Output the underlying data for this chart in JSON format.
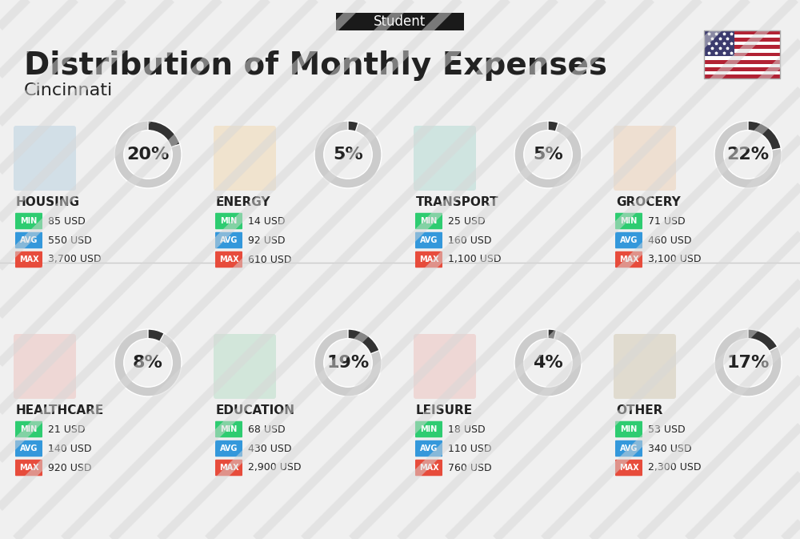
{
  "title": "Distribution of Monthly Expenses",
  "subtitle": "Cincinnati",
  "header_label": "Student",
  "background_color": "#f0f0f0",
  "categories": [
    {
      "name": "HOUSING",
      "percent": 20,
      "min": "85 USD",
      "avg": "550 USD",
      "max": "3,700 USD",
      "row": 0,
      "col": 0
    },
    {
      "name": "ENERGY",
      "percent": 5,
      "min": "14 USD",
      "avg": "92 USD",
      "max": "610 USD",
      "row": 0,
      "col": 1
    },
    {
      "name": "TRANSPORT",
      "percent": 5,
      "min": "25 USD",
      "avg": "160 USD",
      "max": "1,100 USD",
      "row": 0,
      "col": 2
    },
    {
      "name": "GROCERY",
      "percent": 22,
      "min": "71 USD",
      "avg": "460 USD",
      "max": "3,100 USD",
      "row": 0,
      "col": 3
    },
    {
      "name": "HEALTHCARE",
      "percent": 8,
      "min": "21 USD",
      "avg": "140 USD",
      "max": "920 USD",
      "row": 1,
      "col": 0
    },
    {
      "name": "EDUCATION",
      "percent": 19,
      "min": "68 USD",
      "avg": "430 USD",
      "max": "2,900 USD",
      "row": 1,
      "col": 1
    },
    {
      "name": "LEISURE",
      "percent": 4,
      "min": "18 USD",
      "avg": "110 USD",
      "max": "760 USD",
      "row": 1,
      "col": 2
    },
    {
      "name": "OTHER",
      "percent": 17,
      "min": "53 USD",
      "avg": "340 USD",
      "max": "2,300 USD",
      "row": 1,
      "col": 3
    }
  ],
  "min_color": "#2ecc71",
  "avg_color": "#3498db",
  "max_color": "#e74c3c",
  "label_color": "#ffffff",
  "text_color": "#222222",
  "header_bg": "#1a1a1a",
  "header_text_color": "#ffffff",
  "donut_filled_color": "#333333",
  "donut_empty_color": "#cccccc",
  "title_fontsize": 28,
  "subtitle_fontsize": 16,
  "category_fontsize": 11,
  "value_fontsize": 10,
  "percent_fontsize": 16
}
